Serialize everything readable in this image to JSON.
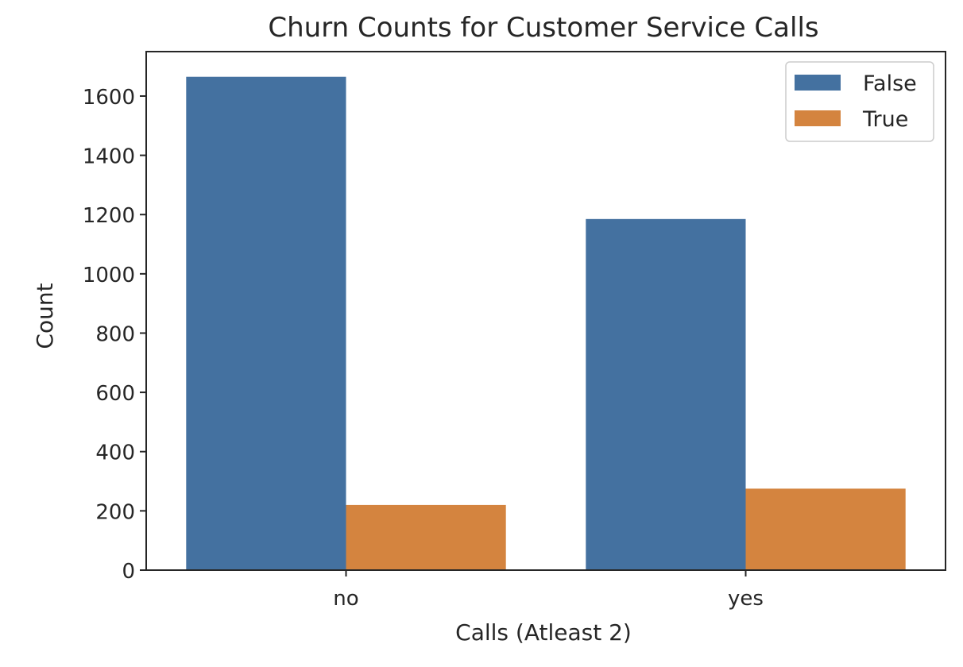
{
  "chart_data": {
    "type": "bar",
    "title": "Churn Counts for Customer Service Calls",
    "xlabel": "Calls (Atleast 2)",
    "ylabel": "Count",
    "categories": [
      "no",
      "yes"
    ],
    "series": [
      {
        "name": "False",
        "color": "#4471a0",
        "values": [
          1665,
          1185
        ]
      },
      {
        "name": "True",
        "color": "#d4843f",
        "values": [
          220,
          275
        ]
      }
    ],
    "ylim": [
      0,
      1750
    ],
    "yticks": [
      0,
      200,
      400,
      600,
      800,
      1000,
      1200,
      1400,
      1600
    ],
    "grid": false,
    "legend_position": "top-right"
  }
}
